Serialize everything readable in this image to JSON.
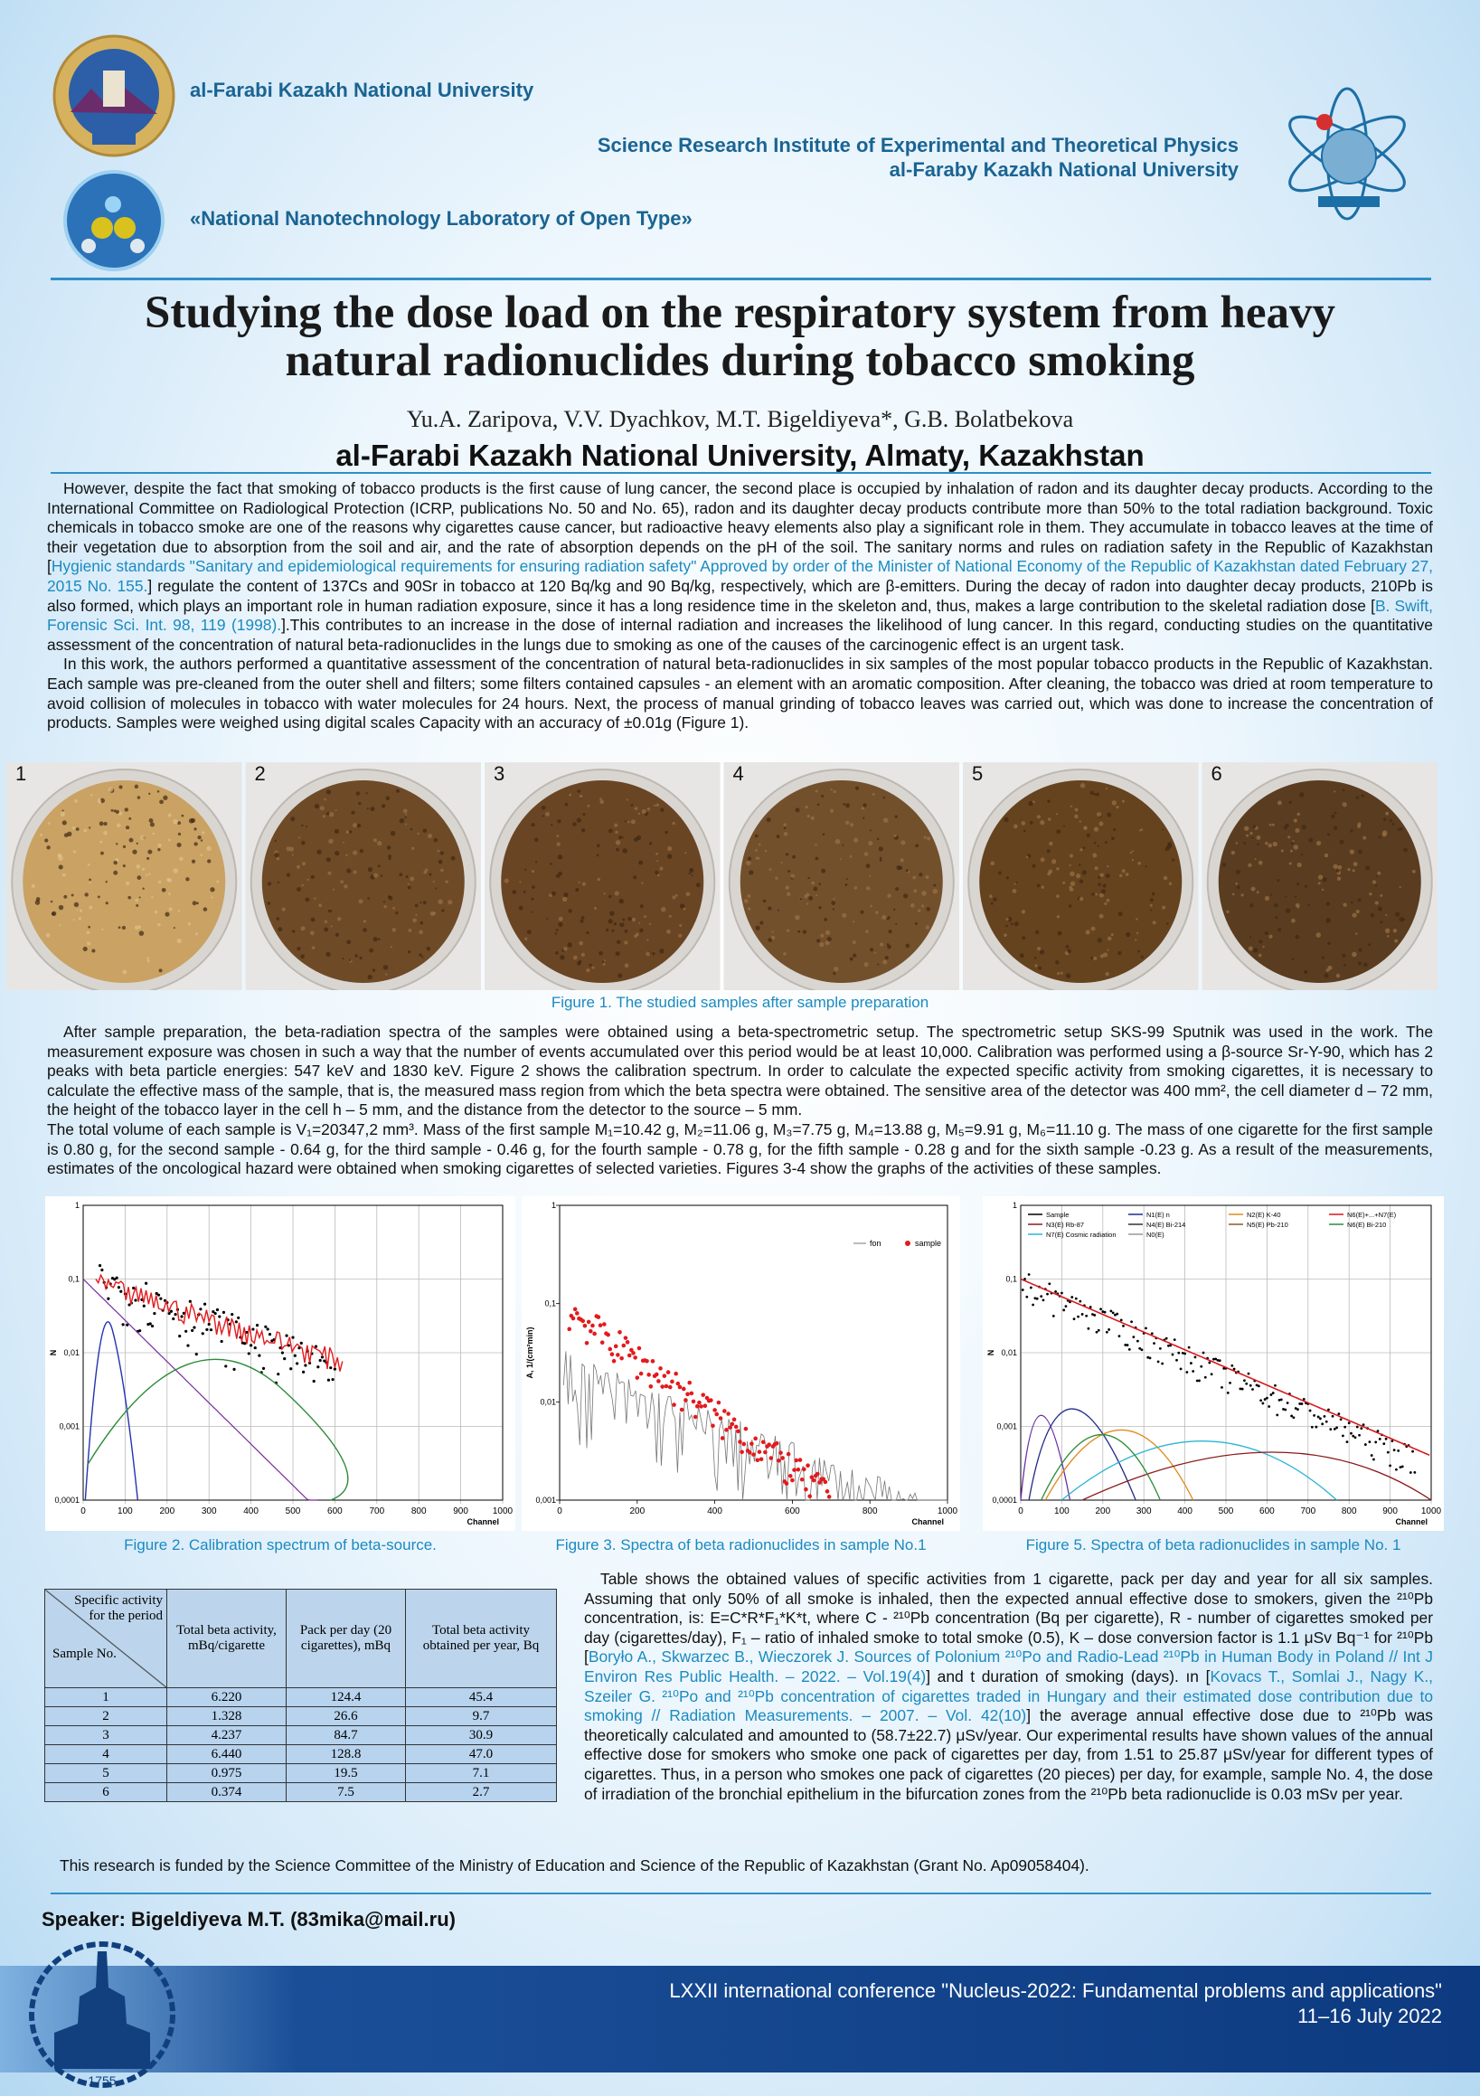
{
  "header": {
    "university": "al-Farabi Kazakh National University",
    "institute_line1": "Science Research Institute of Experimental and Theoretical Physics",
    "institute_line2": "al-Faraby Kazakh National University",
    "laboratory": "«National Nanotechnology Laboratory of Open Type»"
  },
  "title_line1": "Studying the dose load on the respiratory system from heavy",
  "title_line2": "natural radionuclides during tobacco smoking",
  "authors": "Yu.A. Zaripova, V.V. Dyachkov, M.T. Bigeldiyeva*, G.B. Bolatbekova",
  "affiliation": "al-Farabi Kazakh National University, Almaty, Kazakhstan",
  "intro": [
    [
      "However, despite the fact that smoking of tobacco products is the first cause of lung cancer, the second place is occupied by inhalation of radon and its daughter decay products. According to the International Committee on Radiological Protection (ICRP, publications No. 50 and No. 65), radon and its daughter decay products contribute more than 50% to the total radiation background. Toxic chemicals in tobacco smoke are one of the reasons why cigarettes cause cancer, but radioactive heavy elements also play a significant role in them. They accumulate in tobacco leaves at the time of their vegetation due to absorption from the soil and air, and the rate of absorption depends on the pH of the soil. The sanitary norms and rules on radiation safety in the Republic of Kazakhstan [",
      "Hygienic standards \"Sanitary and epidemiological requirements for ensuring radiation safety\" Approved by order of the Minister of National Economy of the Republic of Kazakhstan dated February 27, 2015 No. 155.",
      "] regulate the content of 137Cs and 90Sr in tobacco at 120 Bq/kg and 90 Bq/kg, respectively, which are β-emitters. During the decay of radon into daughter decay products, 210Pb is also formed, which plays an important role in human radiation exposure, since it has a long residence time in the skeleton and, thus, makes a large contribution to the skeletal radiation dose [",
      "B. Swift, Forensic Sci. Int. 98, 119 (1998).",
      "].This contributes to an increase in the dose of internal radiation and increases the likelihood of lung cancer. In this regard, conducting studies on the quantitative assessment of the concentration of natural beta-radionuclides in the lungs due to smoking as one of the causes of the carcinogenic effect is an urgent task."
    ],
    [
      "In this work, the authors performed a quantitative assessment of the concentration of natural beta-radionuclides in six samples of the most popular tobacco products in the Republic of Kazakhstan. Each sample was pre-cleaned from the outer shell and filters; some filters contained capsules - an element with an aromatic composition. After cleaning, the tobacco was dried at room temperature to avoid collision of molecules in tobacco with water molecules for 24 hours. Next, the process of manual grinding of tobacco leaves was carried out, which was done to increase the concentration of products. Samples were weighed using digital scales Capacity with an accuracy of ±0.01g (Figure 1)."
    ]
  ],
  "figure1": {
    "labels": [
      "1",
      "2",
      "3",
      "4",
      "5",
      "6"
    ],
    "caption": "Figure 1. The studied samples after sample preparation"
  },
  "methods": [
    "After sample preparation, the beta-radiation spectra of the samples were obtained using a beta-spectrometric setup. The spectrometric setup SKS-99 Sputnik was used in the work. The measurement exposure was chosen in such a way that the number of events accumulated over this period would be at least 10,000. Calibration was performed using a β-source Sr-Y-90, which has 2 peaks with beta particle energies: 547 keV and 1830 keV. Figure 2 shows the calibration spectrum. In order to calculate the expected specific activity from smoking cigarettes, it is necessary to calculate the effective mass of the sample, that is, the measured mass region from which the beta spectra were obtained. The sensitive area of the detector was 400 mm², the cell diameter d – 72 mm, the height of the tobacco layer in the cell h – 5 mm, and the distance from the detector to the source – 5 mm.",
    "The total volume of each sample is V₁=20347,2 mm³. Mass of the first sample M₁=10.42 g, M₂=11.06 g, M₃=7.75 g, M₄=13.88 g, M₅=9.91 g, M₆=11.10 g. The mass of one cigarette for the first sample is 0.80 g, for the second sample - 0.64 g, for the third sample - 0.46 g, for the fourth sample - 0.78 g, for the fifth sample - 0.28 g and for the sixth sample -0.23 g. As a result of the measurements, estimates of the oncological hazard were obtained when smoking cigarettes of selected varieties. Figures 3-4 show the graphs of the activities of these samples."
  ],
  "chart_data": [
    {
      "type": "scatter",
      "caption": "Figure 2.  Calibration spectrum of beta-source.",
      "xlabel": "Channel",
      "ylabel": "N",
      "log_y": true,
      "grid": true,
      "xlim": [
        0,
        1000
      ],
      "xticks": [
        0,
        100,
        200,
        300,
        400,
        500,
        600,
        700,
        800,
        900,
        1000
      ],
      "ylim": [
        0.0001,
        1
      ],
      "yticks": [
        {
          "value": 0.0001,
          "label": "0,0001"
        },
        {
          "value": 0.001,
          "label": "0,001"
        },
        {
          "value": 0.01,
          "label": "0,01"
        },
        {
          "value": 0.1,
          "label": "0,1"
        },
        1
      ]
    },
    {
      "type": "scatter",
      "caption": "Figure 3. Spectra of beta radionuclides in sample No.1",
      "xlabel": "Channel",
      "ylabel": "A, 1/(cm²min)",
      "log_y": true,
      "grid": false,
      "xlim": [
        0,
        1000
      ],
      "xticks": [
        0,
        200,
        400,
        600,
        800,
        1000
      ],
      "ylim": [
        0.001,
        1
      ],
      "yticks": [
        {
          "value": 0.001,
          "label": "0,001"
        },
        {
          "value": 0.01,
          "label": "0,01"
        },
        {
          "value": 0.1,
          "label": "0,1"
        },
        1
      ],
      "series": [
        {
          "name": "fon",
          "color": "#777777"
        },
        {
          "name": "sample",
          "color": "#e31a1c"
        }
      ]
    },
    {
      "type": "scatter",
      "caption": "Figure 5. Spectra of beta radionuclides in sample No. 1",
      "xlabel": "Channel",
      "ylabel": "N",
      "log_y": true,
      "grid": true,
      "xlim": [
        0,
        1000
      ],
      "xticks": [
        0,
        100,
        200,
        300,
        400,
        500,
        600,
        700,
        800,
        900,
        1000
      ],
      "ylim": [
        0.0001,
        1
      ],
      "yticks": [
        {
          "value": 0.0001,
          "label": "0,0001"
        },
        {
          "value": 0.001,
          "label": "0,001"
        },
        {
          "value": 0.01,
          "label": "0,01"
        },
        {
          "value": 0.1,
          "label": "0,1"
        },
        1
      ],
      "series": [
        {
          "name": "Sample",
          "color": "#000000"
        },
        {
          "name": "N1(E) n",
          "color": "#1f2a8a"
        },
        {
          "name": "N2(E) K-40",
          "color": "#e08a1e"
        },
        {
          "name": "N6(E)+...+N7(E)",
          "color": "#d7191c"
        },
        {
          "name": "N3(E) Rb-87",
          "color": "#8b1a1a"
        },
        {
          "name": "N4(E) Bi-214",
          "color": "#333333"
        },
        {
          "name": "N5(E) Pb-210",
          "color": "#8b5a2b"
        },
        {
          "name": "N6(E) Bi-210",
          "color": "#2e8b3a"
        },
        {
          "name": "N7(E) Cosmic radiation",
          "color": "#27b5d6"
        },
        {
          "name": "N0(E)",
          "color": "#999999"
        }
      ]
    }
  ],
  "table": {
    "corner_top": "Specific activity for the period",
    "corner_bottom": "Sample No.",
    "headers": [
      "Total beta activity, mBq/cigarette",
      "Pack per day (20 cigarettes), mBq",
      "Total beta activity obtained per year, Bq"
    ],
    "rows": [
      [
        "1",
        "6.220",
        "124.4",
        "45.4"
      ],
      [
        "2",
        "1.328",
        "26.6",
        "9.7"
      ],
      [
        "3",
        "4.237",
        "84.7",
        "30.9"
      ],
      [
        "4",
        "6.440",
        "128.8",
        "47.0"
      ],
      [
        "5",
        "0.975",
        "19.5",
        "7.1"
      ],
      [
        "6",
        "0.374",
        "7.5",
        "2.7"
      ]
    ]
  },
  "results": [
    "Table shows the obtained values of specific activities from 1 cigarette, pack per day and year for all six samples. Assuming that only 50% of all smoke is inhaled, then the expected annual effective dose to smokers, given the ²¹⁰Pb concentration, is: E=C*R*F₁*K*t, where C - ²¹⁰Pb concentration (Bq per cigarette), R - number of cigarettes smoked per day (cigarettes/day), F₁ – ratio of inhaled smoke to total smoke (0.5), K – dose conversion factor is 1.1 μSv Bq⁻¹ for ²¹⁰Pb [",
    "Boryło A., Skwarzec B., Wieczorek J. Sources of Polonium ²¹⁰Po and Radio-Lead ²¹⁰Pb in Human Body in Poland // Int J Environ Res Public Health. – 2022. – Vol.19(4)",
    "] and t duration of smoking (days). ın [",
    "Kovacs T., Somlai J.,  Nagy K., Szeiler G. ²¹⁰Po and ²¹⁰Pb concentration of cigarettes traded in Hungary and their estimated dose contribution due to smoking // Radiation Measurements. – 2007. – Vol. 42(10)",
    "] the average annual effective dose due to ²¹⁰Pb was theoretically calculated and amounted to (58.7±22.7) μSv/year. Our experimental results have shown values of the annual effective dose for smokers who smoke one pack of cigarettes per day, from 1.51 to 25.87 μSv/year for different types of cigarettes. Thus, in a person who smokes one pack of cigarettes (20 pieces) per day, for example, sample No. 4, the dose of irradiation of the bronchial epithelium in the bifurcation zones from the ²¹⁰Pb beta radionuclide is 0.03 mSv per year."
  ],
  "funding": "This research is funded by the Science Committee of the Ministry of Education and Science of the Republic of Kazakhstan (Grant No. Ap09058404).",
  "speaker": "Speaker: Bigeldiyeva M.T. (83mika@mail.ru)",
  "footer": {
    "conference": "LXXII international conference \"Nucleus-2022: Fundamental problems and applications\"",
    "dates": "11–16 July 2022",
    "logo_year": "1755"
  }
}
